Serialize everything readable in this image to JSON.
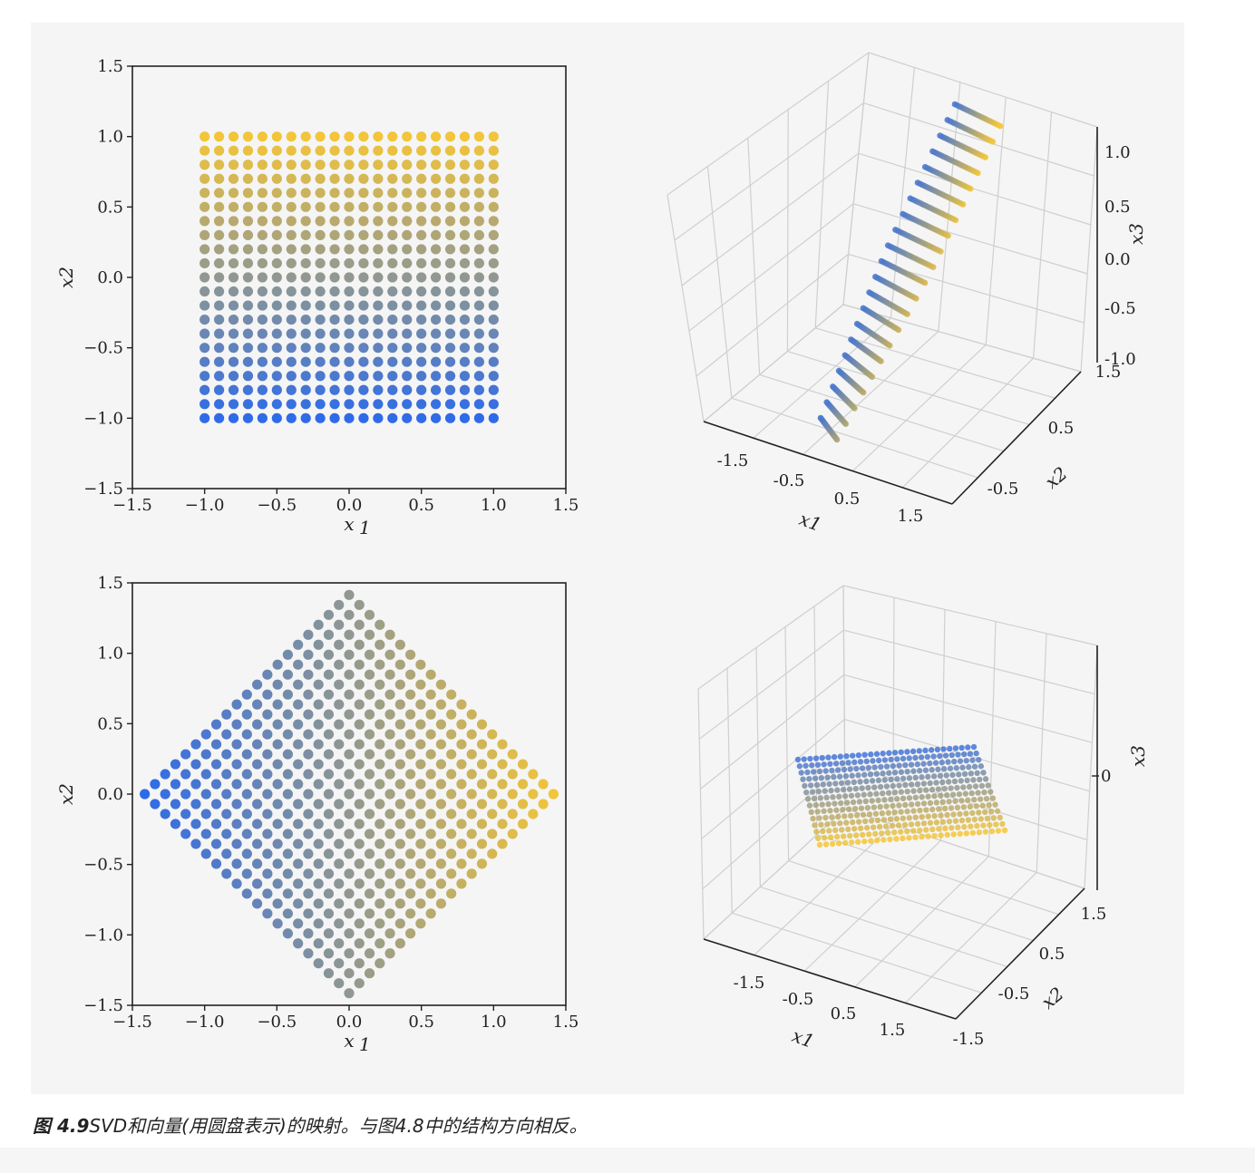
{
  "caption": {
    "label": "图 4.9",
    "text": "SVD和向量(用圆盘表示)的映射。与图4.8中的结构方向相反。"
  },
  "colors": {
    "start": "#2f6be8",
    "end": "#f2c53a",
    "panel_bg": "#f5f5f5"
  },
  "chart_data": [
    {
      "type": "scatter",
      "panel": "top-left",
      "description_points": "21x21 grid of points from -1 to 1 in each axis, colored by x2 (blue at -1 to yellow at 1)",
      "grid": {
        "n": 21,
        "min": -1,
        "max": 1
      },
      "xlabel": "x1",
      "ylabel": "x2",
      "xlim": [
        -1.5,
        1.5
      ],
      "ylim": [
        -1.5,
        1.5
      ],
      "xticks": [
        "−1.5",
        "−1.0",
        "−0.5",
        "0.0",
        "0.5",
        "1.0",
        "1.5"
      ],
      "yticks": [
        "−1.5",
        "−1.0",
        "−0.5",
        "0.0",
        "0.5",
        "1.0",
        "1.5"
      ]
    },
    {
      "type": "scatter3d",
      "panel": "top-right",
      "xlabel": "x1",
      "ylabel": "x2",
      "zlabel": "x3",
      "xticks": [
        "-1.5",
        "-0.5",
        "0.5",
        "1.5"
      ],
      "yticks": [
        "-0.5",
        "0.5",
        "1.5"
      ],
      "zticks": [
        "-1.0",
        "-0.5",
        "0.0",
        "0.5",
        "1.0"
      ]
    },
    {
      "type": "scatter",
      "panel": "bottom-left",
      "rotation_deg": 45,
      "xlabel": "x1",
      "ylabel": "x2",
      "xlim": [
        -1.5,
        1.5
      ],
      "ylim": [
        -1.5,
        1.5
      ],
      "xticks": [
        "−1.5",
        "−1.0",
        "−0.5",
        "0.0",
        "0.5",
        "1.0",
        "1.5"
      ],
      "yticks": [
        "−1.5",
        "−1.0",
        "−0.5",
        "0.0",
        "0.5",
        "1.0",
        "1.5"
      ]
    },
    {
      "type": "scatter3d",
      "panel": "bottom-right",
      "xlabel": "x1",
      "ylabel": "x2",
      "zlabel": "x3",
      "xticks": [
        "-1.5",
        "-0.5",
        "0.5",
        "1.5"
      ],
      "yticks": [
        "-1.5",
        "-0.5",
        "0.5",
        "1.5"
      ],
      "zticks": [
        "0"
      ]
    }
  ]
}
